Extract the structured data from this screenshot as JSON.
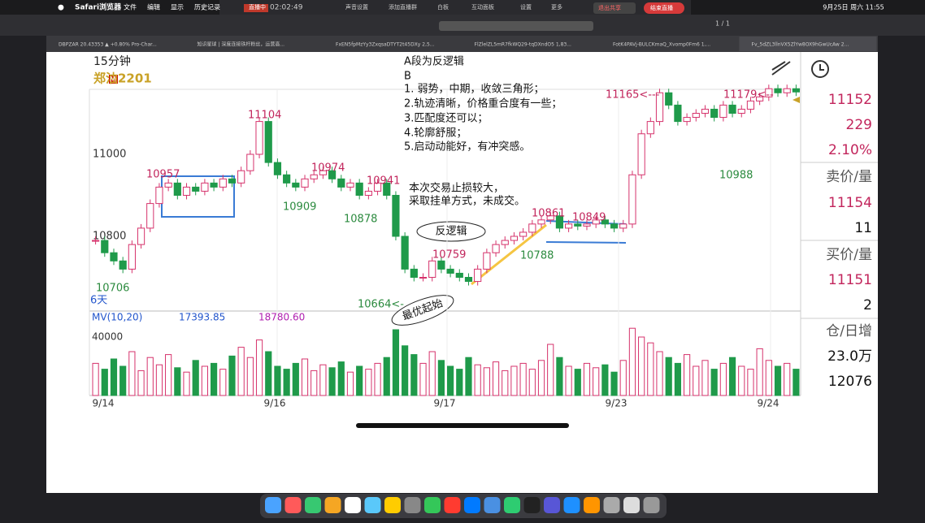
{
  "menubar": {
    "app": "Safari浏览器",
    "items": [
      "文件",
      "编辑",
      "显示",
      "历史记录"
    ],
    "status": [
      "直播中",
      "02:02:49",
      "声音设置",
      "添加直播群",
      "白板",
      "互动面板",
      "设置",
      "更多"
    ],
    "stop": "退出共享",
    "end": "结束直播",
    "clock": "9月25日 周六 11:55"
  },
  "browser": {
    "page": "1 / 1"
  },
  "tabs": [
    "DBPZAR 20.43353 ▲ +0.80% Pro-Char...",
    "知识星球 | 深度连接铁杆粉丝，运营高...",
    "FxEN5fpMzYy3ZxqsaDTYT2t45DXy 2,5...",
    "FlZlelZL5mR7fkWQ29-tqDXndO5 1,83...",
    "FotK4PAVj-BULCKmaQ_Xvomp0Fm6 1,...",
    "Fv_5dZL3llnVX5ZlYw8OX9hGwUcAw 2..."
  ],
  "chart": {
    "period": "15分钟",
    "symbol": "郑油2201",
    "badge": "M",
    "price_ticks": [
      11000,
      10800
    ],
    "days": "6天",
    "mv_label": "MV(10,20)",
    "mv1": "17393.85",
    "mv2": "18780.60",
    "vol_tick": 40000,
    "dates": [
      "9/14",
      "9/16",
      "9/17",
      "9/23",
      "9/24"
    ],
    "point_labels": [
      "10957",
      "11104",
      "10909",
      "10974",
      "10878",
      "10941",
      "10706",
      "10664<-",
      "10759",
      "10861",
      "10849",
      "10788",
      "11165<---",
      "11179<--",
      "10988"
    ],
    "notes": [
      "A段为反逻辑",
      "B",
      "1. 弱势，中期，收敛三角形；",
      "2.轨迹清晰，价格重合度有一些；",
      "3.匹配度还可以；",
      "4.轮廓舒服；",
      "5.启动动能好，有冲突感。",
      "本次交易止损较大，",
      "采取挂单方式，未成交。"
    ],
    "bubbles": [
      "反逻辑",
      "最优起始"
    ],
    "closes": [
      10790,
      10760,
      10740,
      10720,
      10780,
      10820,
      10880,
      10920,
      10930,
      10900,
      10920,
      10910,
      10930,
      10920,
      10940,
      10930,
      10960,
      11000,
      11080,
      10980,
      10950,
      10930,
      10920,
      10940,
      10950,
      10960,
      10940,
      10920,
      10930,
      10900,
      10910,
      10930,
      10900,
      10800,
      10720,
      10700,
      10700,
      10740,
      10720,
      10710,
      10700,
      10690,
      10720,
      10760,
      10780,
      10790,
      10800,
      10810,
      10830,
      10840,
      10850,
      10820,
      10830,
      10825,
      10830,
      10840,
      10830,
      10820,
      10830,
      10950,
      11050,
      11080,
      11150,
      11120,
      11080,
      11090,
      11100,
      11110,
      11090,
      11120,
      11100,
      11110,
      11130,
      11140,
      11160,
      11150,
      11160,
      11152
    ],
    "volumes": [
      22000,
      18000,
      25000,
      20000,
      30000,
      17000,
      26000,
      21000,
      28000,
      19000,
      16000,
      24000,
      20000,
      22000,
      18000,
      27000,
      33000,
      26000,
      38000,
      30000,
      20000,
      18000,
      22000,
      25000,
      17000,
      21000,
      19000,
      23000,
      16000,
      20000,
      18000,
      22000,
      26000,
      45000,
      34000,
      28000,
      22000,
      30000,
      24000,
      20000,
      18000,
      26000,
      21000,
      19000,
      23000,
      17000,
      20000,
      22000,
      18000,
      24000,
      35000,
      26000,
      20000,
      18000,
      22000,
      19000,
      21000,
      16000,
      24000,
      46000,
      40000,
      36000,
      30000,
      26000,
      22000,
      28000,
      20000,
      24000,
      18000,
      22000,
      26000,
      20000,
      18000,
      32000,
      24000,
      20000,
      22000,
      18000
    ]
  },
  "side": [
    "11152",
    "229",
    "2.10%",
    "卖价/量",
    "11154",
    "11",
    "买价/量",
    "11151",
    "2",
    "仓/日增",
    "23.0万",
    "12076"
  ]
}
